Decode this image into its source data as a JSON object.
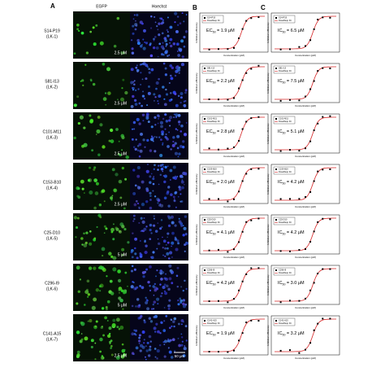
{
  "panels": {
    "a": "A",
    "b": "B",
    "c": "C"
  },
  "columns": [
    "EGFP",
    "Hoechst"
  ],
  "axis": {
    "x": "Concentration (μM)",
    "y": "Inhibition efficiency"
  },
  "legend_fit": "DoseResp Fit",
  "ec_symbol": "EC",
  "ic_symbol": "IC",
  "subscript": "50",
  "scale_bar": "50 μm",
  "rows": [
    {
      "name": "S14-P19",
      "code": "(LK-1)",
      "conc": "2.5 μM",
      "ec50": "= 1.9 μM",
      "ic50": "= 6.5 μM"
    },
    {
      "name": "S81-I13",
      "code": "(LK-2)",
      "conc": "2.5 μM",
      "ec50": "= 2.2 μM",
      "ic50": "= 7.5 μM"
    },
    {
      "name": "C101-M11",
      "code": "(LK-3)",
      "conc": "2.5 μM",
      "ec50": "= 2.8 μM",
      "ic50": "= 5.1 μM"
    },
    {
      "name": "C153-B10",
      "code": "(LK-4)",
      "conc": "2.5 μM",
      "ec50": "= 2.0 μM",
      "ic50": "= 4.2 μM"
    },
    {
      "name": "C25-D10",
      "code": "(LK-5)",
      "conc": "5 μM",
      "ec50": "= 4.1 μM",
      "ic50": "= 4.2 μM"
    },
    {
      "name": "C296-I9",
      "code": "(LK-6)",
      "conc": "5 μM",
      "ec50": "= 4.2 μM",
      "ic50": "= 3.0 μM"
    },
    {
      "name": "C141-A15",
      "code": "(LK-7)",
      "conc": "2.5 μM",
      "ec50": "= 1.9 μM",
      "ic50": "= 3.2 μM"
    }
  ]
}
